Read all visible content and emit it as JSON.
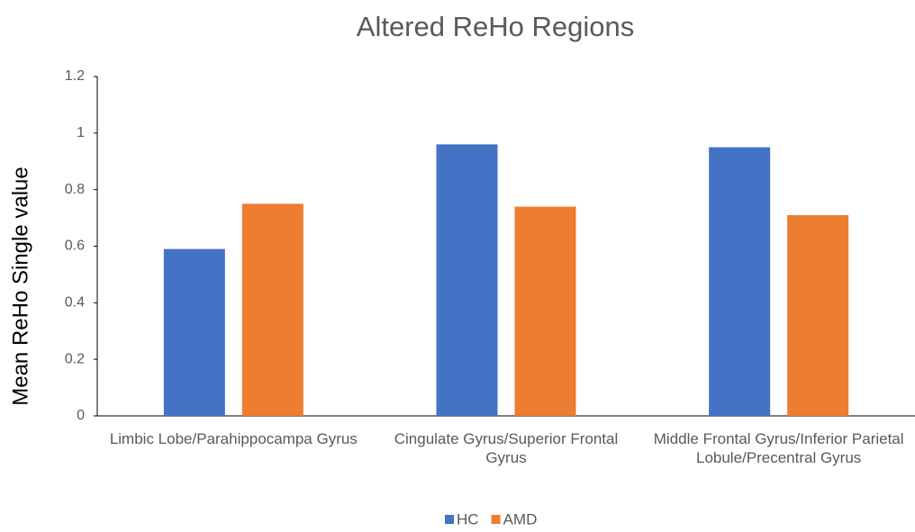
{
  "chart_data": {
    "type": "bar",
    "title": "Altered ReHo Regions",
    "y_label": "Mean ReHo Single value",
    "categories": [
      "Limbic Lobe/Parahippocampa Gyrus",
      "Cingulate Gyrus/Superior Frontal Gyrus",
      "Middle Frontal Gyrus/Inferior Parietal Lobule/Precentral Gyrus"
    ],
    "series": [
      {
        "name": "HC",
        "color": "#4472c4",
        "values": [
          0.59,
          0.96,
          0.95
        ]
      },
      {
        "name": "AMD",
        "color": "#ed7d31",
        "values": [
          0.75,
          0.74,
          0.71
        ]
      }
    ],
    "ylim": [
      0,
      1.2
    ],
    "yticks": [
      0,
      0.2,
      0.4,
      0.6,
      0.8,
      1,
      1.2
    ],
    "grid": false,
    "legend": "bottom"
  }
}
